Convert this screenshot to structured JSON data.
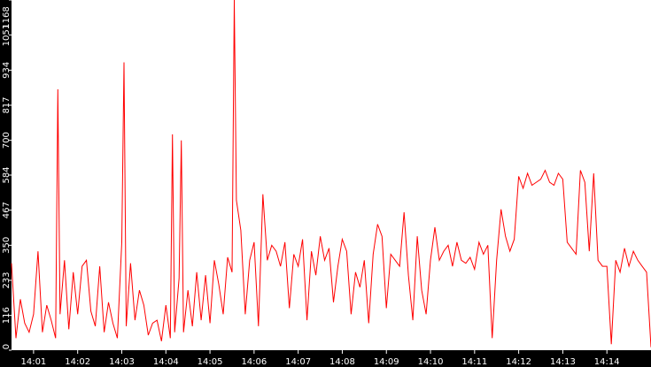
{
  "chart_data": {
    "type": "line",
    "title": "",
    "xlabel": "",
    "ylabel": "",
    "ylim": [
      0,
      1168
    ],
    "xlim_minutes": [
      0.5,
      15.0
    ],
    "yticks": [
      {
        "value": 0,
        "label": "0"
      },
      {
        "value": 116,
        "label": "116"
      },
      {
        "value": 233,
        "label": "233"
      },
      {
        "value": 350,
        "label": "350"
      },
      {
        "value": 467,
        "label": "467"
      },
      {
        "value": 584,
        "label": "584"
      },
      {
        "value": 700,
        "label": "700"
      },
      {
        "value": 817,
        "label": "817"
      },
      {
        "value": 934,
        "label": "934"
      },
      {
        "value": 1051,
        "label": "1051"
      },
      {
        "value": 1168,
        "label": "1168"
      }
    ],
    "xticks": [
      {
        "value": 1,
        "label": "14:01"
      },
      {
        "value": 2,
        "label": "14:02"
      },
      {
        "value": 3,
        "label": "14:03"
      },
      {
        "value": 4,
        "label": "14:04"
      },
      {
        "value": 5,
        "label": "14:05"
      },
      {
        "value": 6,
        "label": "14:06"
      },
      {
        "value": 7,
        "label": "14:07"
      },
      {
        "value": 8,
        "label": "14:08"
      },
      {
        "value": 9,
        "label": "14:09"
      },
      {
        "value": 10,
        "label": "14:10"
      },
      {
        "value": 11,
        "label": "14:11"
      },
      {
        "value": 12,
        "label": "14:12"
      },
      {
        "value": 13,
        "label": "14:13"
      },
      {
        "value": 14,
        "label": "14:14"
      }
    ],
    "colors": {
      "line": "#ff0000",
      "axis": "#000000",
      "label": "#ffffff",
      "background": "#ffffff"
    },
    "grid": false,
    "series": [
      {
        "color": "#ff0000",
        "x": [
          0.5,
          0.6,
          0.7,
          0.8,
          0.9,
          1.0,
          1.1,
          1.2,
          1.3,
          1.4,
          1.5,
          1.55,
          1.6,
          1.7,
          1.8,
          1.9,
          2.0,
          2.1,
          2.2,
          2.3,
          2.4,
          2.5,
          2.6,
          2.7,
          2.8,
          2.9,
          3.0,
          3.05,
          3.1,
          3.2,
          3.3,
          3.4,
          3.5,
          3.6,
          3.7,
          3.8,
          3.9,
          4.0,
          4.1,
          4.15,
          4.2,
          4.3,
          4.35,
          4.4,
          4.5,
          4.6,
          4.7,
          4.8,
          4.9,
          5.0,
          5.1,
          5.2,
          5.3,
          5.4,
          5.5,
          5.55,
          5.6,
          5.7,
          5.8,
          5.9,
          6.0,
          6.1,
          6.2,
          6.3,
          6.4,
          6.5,
          6.6,
          6.7,
          6.8,
          6.9,
          7.0,
          7.1,
          7.2,
          7.3,
          7.4,
          7.5,
          7.6,
          7.7,
          7.8,
          7.9,
          8.0,
          8.1,
          8.2,
          8.3,
          8.4,
          8.5,
          8.6,
          8.7,
          8.8,
          8.9,
          9.0,
          9.1,
          9.2,
          9.3,
          9.4,
          9.5,
          9.6,
          9.7,
          9.8,
          9.9,
          10.0,
          10.1,
          10.2,
          10.3,
          10.4,
          10.5,
          10.6,
          10.7,
          10.8,
          10.9,
          11.0,
          11.1,
          11.2,
          11.3,
          11.4,
          11.5,
          11.6,
          11.7,
          11.8,
          11.9,
          12.0,
          12.1,
          12.2,
          12.3,
          12.4,
          12.5,
          12.6,
          12.7,
          12.8,
          12.9,
          13.0,
          13.1,
          13.2,
          13.3,
          13.4,
          13.5,
          13.6,
          13.7,
          13.8,
          13.9,
          14.0,
          14.1,
          14.2,
          14.3,
          14.4,
          14.5,
          14.6,
          14.7,
          14.8,
          14.9,
          15.0
        ],
        "y": [
          290,
          40,
          170,
          90,
          60,
          120,
          330,
          60,
          150,
          100,
          40,
          870,
          120,
          300,
          70,
          260,
          120,
          280,
          300,
          130,
          80,
          280,
          60,
          160,
          90,
          40,
          360,
          960,
          80,
          290,
          100,
          200,
          150,
          50,
          90,
          100,
          30,
          150,
          40,
          720,
          60,
          240,
          700,
          60,
          200,
          80,
          260,
          100,
          250,
          90,
          300,
          220,
          120,
          310,
          260,
          1168,
          500,
          400,
          120,
          300,
          360,
          80,
          520,
          300,
          350,
          330,
          280,
          360,
          140,
          320,
          280,
          370,
          100,
          330,
          250,
          380,
          300,
          340,
          160,
          280,
          370,
          330,
          120,
          260,
          210,
          300,
          90,
          320,
          420,
          380,
          140,
          320,
          300,
          280,
          460,
          250,
          100,
          380,
          200,
          120,
          300,
          410,
          300,
          330,
          350,
          280,
          360,
          300,
          290,
          310,
          270,
          360,
          320,
          350,
          40,
          300,
          470,
          380,
          330,
          370,
          580,
          540,
          590,
          550,
          560,
          570,
          600,
          560,
          550,
          590,
          570,
          360,
          340,
          320,
          600,
          560,
          330,
          590,
          300,
          280,
          280,
          20,
          300,
          260,
          340,
          280,
          330,
          300,
          280,
          260,
          10
        ]
      }
    ]
  }
}
